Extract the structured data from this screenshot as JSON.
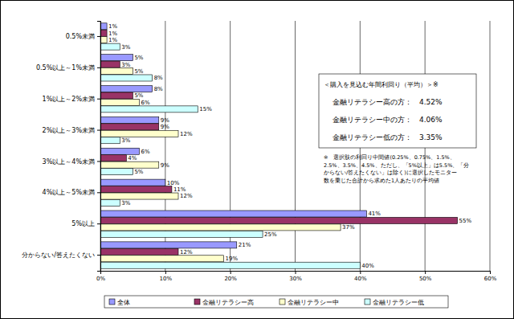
{
  "chart_data": {
    "type": "bar",
    "orientation": "horizontal",
    "grid": true,
    "legend": "bottom",
    "data_labels": true,
    "categories": [
      "0.5%未満",
      "0.5%以上～1%未満",
      "1%以上～2%未満",
      "2%以上～3%未満",
      "3%以上～4%未満",
      "4%以上～5%未満",
      "5%以上",
      "分からない/答えたくない"
    ],
    "series": [
      {
        "name": "全体",
        "color": "#9999ff",
        "values": [
          1,
          5,
          8,
          9,
          6,
          10,
          41,
          21
        ],
        "value_labels": [
          "1%",
          "5%",
          "8%",
          "9%",
          "6%",
          "10%",
          "41%",
          "21%"
        ]
      },
      {
        "name": "金融リテラシー高",
        "color": "#993366",
        "values": [
          1,
          3,
          5,
          9,
          4,
          11,
          55,
          12
        ],
        "value_labels": [
          "1%",
          "3%",
          "5%",
          "9%",
          "4%",
          "11%",
          "55%",
          "12%"
        ]
      },
      {
        "name": "金融リテラシー中",
        "color": "#ffffcc",
        "values": [
          1,
          5,
          6,
          12,
          9,
          12,
          37,
          19
        ],
        "value_labels": [
          "1%",
          "5%",
          "6%",
          "12%",
          "9%",
          "12%",
          "37%",
          "19%"
        ]
      },
      {
        "name": "金融リテラシー低",
        "color": "#ccffff",
        "values": [
          3,
          8,
          15,
          3,
          5,
          3,
          25,
          40
        ],
        "value_labels": [
          "3%",
          "8%",
          "15%",
          "3%",
          "5%",
          "3%",
          "25%",
          "40%"
        ]
      }
    ],
    "xlim": [
      0,
      60
    ],
    "xticks": [
      {
        "value": 0,
        "label": "0%"
      },
      {
        "value": 10,
        "label": "10%"
      },
      {
        "value": 20,
        "label": "20%"
      },
      {
        "value": 30,
        "label": "30%"
      },
      {
        "value": 40,
        "label": "40%"
      },
      {
        "value": 50,
        "label": "50%"
      },
      {
        "value": 60,
        "label": "60%"
      }
    ],
    "annotations": [
      "＜購入を見込む年間利回り（平均）＞※",
      "金融リテラシー高の方：　4.52%",
      "金融リテラシー中の方：　4.06%",
      "金融リテラシー低の方：　3.35%"
    ],
    "footnote": [
      "※　選択肢の利回り中間値(0.25%、0.75%、1.5%、",
      "2.5%、3.5%、4.5%、ただし、「5%以上」は5.5%、「分",
      "からない/答えたくない」は除く)に選択したモニター",
      "数を乗じた合計から求めた1人あたりの平均値"
    ]
  }
}
